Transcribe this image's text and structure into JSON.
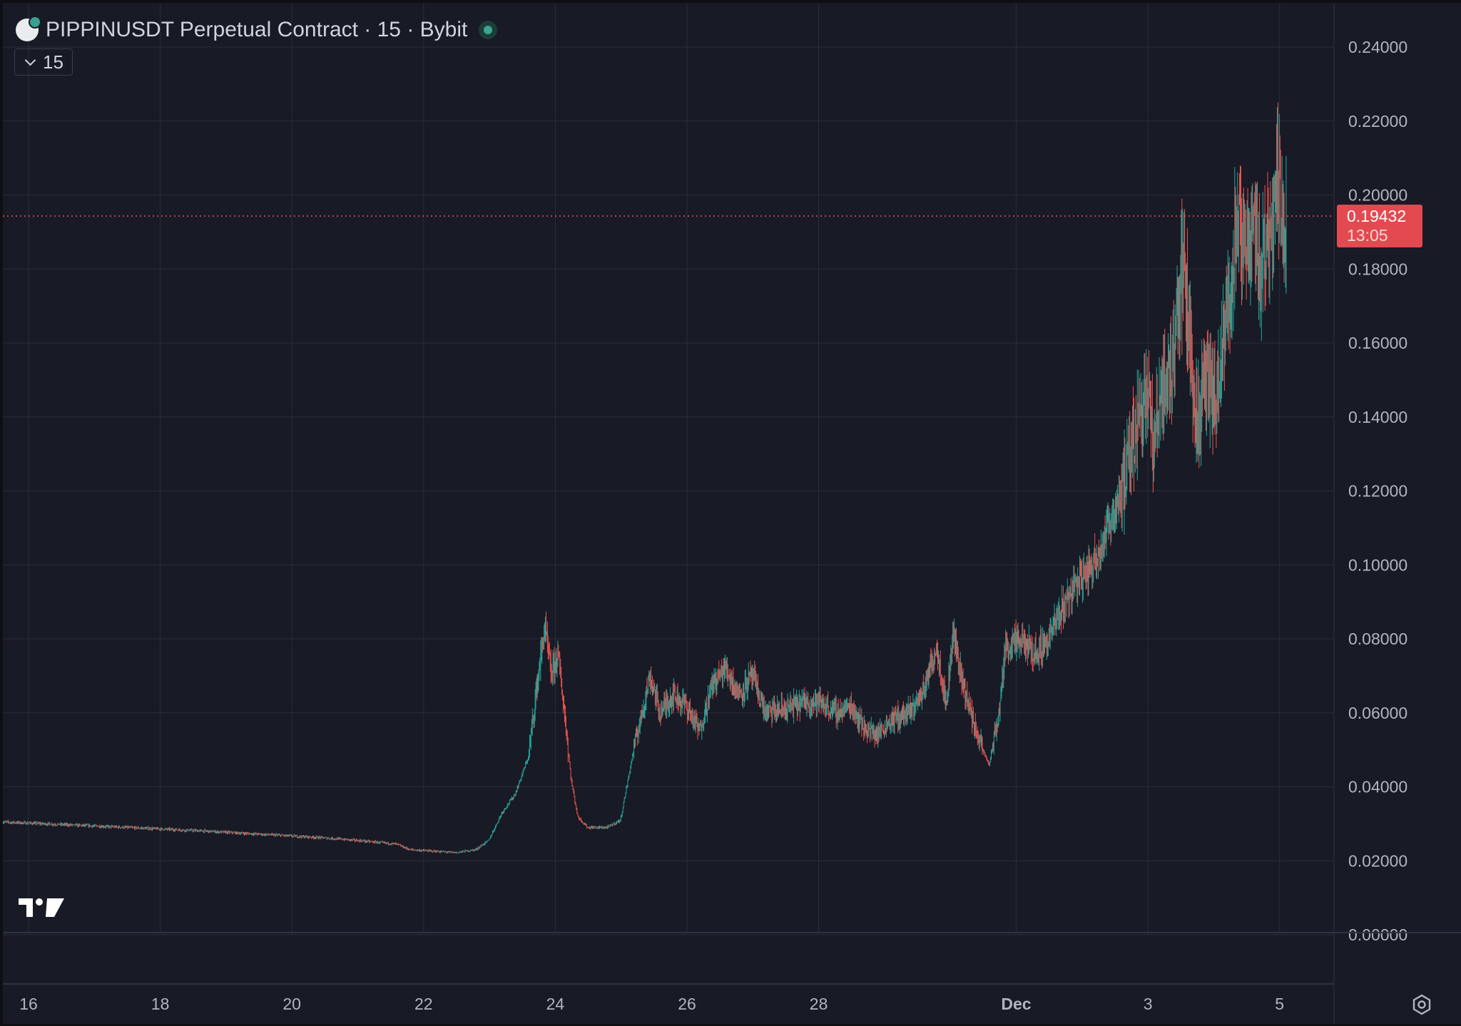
{
  "header": {
    "title": "PIPPINUSDT Perpetual Contract · 15 · Bybit",
    "interval": "15"
  },
  "price_tag": {
    "price": "0.19432",
    "countdown": "13:05"
  },
  "colors": {
    "background": "#181a25",
    "grid": "#2a2e39",
    "up": "#26a69a",
    "down": "#ef5350",
    "last_price_line": "#ef5350",
    "tag_bg": "#e24a4f",
    "axis_text": "#b2b5be"
  },
  "icons": {
    "logo": "pippin-coin-icon",
    "status": "live-status-dot",
    "interval_chevron": "chevron-down-icon",
    "settings": "settings-gear-icon",
    "brand": "tradingview-logo-icon"
  },
  "chart_data": {
    "type": "candlestick",
    "y_ticks": [
      "0.24000",
      "0.22000",
      "0.20000",
      "0.18000",
      "0.16000",
      "0.14000",
      "0.12000",
      "0.10000",
      "0.08000",
      "0.06000",
      "0.04000",
      "0.02000",
      "0.00000"
    ],
    "ylim": [
      0,
      0.25
    ],
    "x_ticks": [
      {
        "label": "16",
        "day": 16
      },
      {
        "label": "18",
        "day": 18
      },
      {
        "label": "20",
        "day": 20
      },
      {
        "label": "22",
        "day": 22
      },
      {
        "label": "24",
        "day": 24
      },
      {
        "label": "26",
        "day": 26
      },
      {
        "label": "28",
        "day": 28
      },
      {
        "label": "Dec",
        "day": 31,
        "bold": true
      },
      {
        "label": "3",
        "day": 33
      },
      {
        "label": "5",
        "day": 35
      }
    ],
    "x_unit": "day of month (Nov 15 – Dec 5, Dec days continue after 30)",
    "x_range": [
      15.6,
      36.0
    ],
    "last_price": 0.19432,
    "grid": true,
    "series": [
      {
        "points": [
          [
            15.6,
            0.0305
          ],
          [
            16.5,
            0.0298
          ],
          [
            17.5,
            0.029
          ],
          [
            18.5,
            0.0282
          ],
          [
            19.5,
            0.0272
          ],
          [
            20.5,
            0.0262
          ],
          [
            21.0,
            0.0255
          ],
          [
            21.6,
            0.0245
          ],
          [
            21.8,
            0.023
          ],
          [
            22.5,
            0.0222
          ],
          [
            22.8,
            0.023
          ],
          [
            23.0,
            0.0255
          ],
          [
            23.2,
            0.033
          ],
          [
            23.4,
            0.038
          ],
          [
            23.6,
            0.048
          ],
          [
            23.75,
            0.07
          ],
          [
            23.85,
            0.083
          ],
          [
            23.95,
            0.07
          ],
          [
            24.05,
            0.076
          ],
          [
            24.15,
            0.06
          ],
          [
            24.25,
            0.042
          ],
          [
            24.35,
            0.032
          ],
          [
            24.5,
            0.029
          ],
          [
            24.8,
            0.029
          ],
          [
            25.0,
            0.031
          ],
          [
            25.2,
            0.05
          ],
          [
            25.35,
            0.062
          ],
          [
            25.45,
            0.07
          ],
          [
            25.6,
            0.06
          ],
          [
            25.8,
            0.065
          ],
          [
            26.0,
            0.062
          ],
          [
            26.2,
            0.055
          ],
          [
            26.4,
            0.068
          ],
          [
            26.6,
            0.072
          ],
          [
            26.8,
            0.065
          ],
          [
            27.0,
            0.07
          ],
          [
            27.2,
            0.06
          ],
          [
            27.5,
            0.061
          ],
          [
            27.8,
            0.063
          ],
          [
            28.0,
            0.063
          ],
          [
            28.3,
            0.06
          ],
          [
            28.5,
            0.062
          ],
          [
            28.7,
            0.056
          ],
          [
            28.9,
            0.054
          ],
          [
            29.1,
            0.058
          ],
          [
            29.4,
            0.06
          ],
          [
            29.6,
            0.066
          ],
          [
            29.8,
            0.078
          ],
          [
            29.95,
            0.062
          ],
          [
            30.05,
            0.082
          ],
          [
            30.2,
            0.068
          ],
          [
            30.35,
            0.058
          ],
          [
            30.5,
            0.05
          ],
          [
            30.6,
            0.046
          ],
          [
            30.75,
            0.06
          ],
          [
            30.85,
            0.078
          ],
          [
            31.1,
            0.079
          ],
          [
            31.3,
            0.076
          ],
          [
            31.5,
            0.08
          ],
          [
            31.7,
            0.088
          ],
          [
            31.9,
            0.095
          ],
          [
            32.1,
            0.098
          ],
          [
            32.3,
            0.105
          ],
          [
            32.5,
            0.115
          ],
          [
            32.7,
            0.125
          ],
          [
            32.85,
            0.14
          ],
          [
            33.0,
            0.15
          ],
          [
            33.1,
            0.13
          ],
          [
            33.2,
            0.148
          ],
          [
            33.35,
            0.15
          ],
          [
            33.45,
            0.17
          ],
          [
            33.55,
            0.18
          ],
          [
            33.65,
            0.16
          ],
          [
            33.75,
            0.138
          ],
          [
            33.9,
            0.15
          ],
          [
            34.05,
            0.142
          ],
          [
            34.2,
            0.165
          ],
          [
            34.35,
            0.19
          ],
          [
            34.5,
            0.185
          ],
          [
            34.6,
            0.195
          ],
          [
            34.72,
            0.18
          ],
          [
            34.85,
            0.19
          ],
          [
            34.95,
            0.205
          ],
          [
            35.05,
            0.195
          ],
          [
            35.1,
            0.19432
          ]
        ]
      }
    ]
  }
}
